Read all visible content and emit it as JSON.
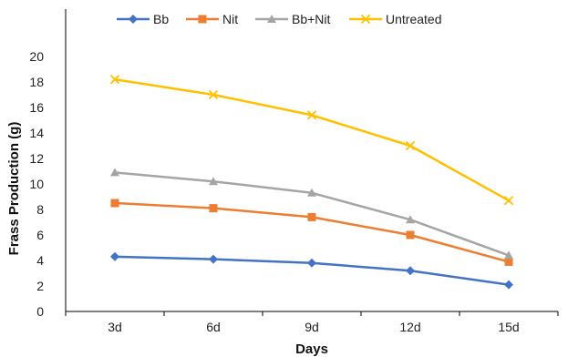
{
  "chart_data": {
    "type": "line",
    "title": "",
    "xlabel": "Days",
    "ylabel": "Frass Production (g)",
    "categories": [
      "3d",
      "6d",
      "9d",
      "12d",
      "15d"
    ],
    "ylim": [
      0,
      20
    ],
    "yticks": [
      0,
      2,
      4,
      6,
      8,
      10,
      12,
      14,
      16,
      18,
      20
    ],
    "grid": false,
    "legend_position": "top",
    "series": [
      {
        "name": "Bb",
        "color": "#4472C4",
        "marker": "diamond",
        "values": [
          4.3,
          4.1,
          3.8,
          3.2,
          2.1
        ]
      },
      {
        "name": "Nit",
        "color": "#ED7D31",
        "marker": "square",
        "values": [
          8.5,
          8.1,
          7.4,
          6.0,
          3.9
        ]
      },
      {
        "name": "Bb+Nit",
        "color": "#A5A5A5",
        "marker": "triangle",
        "values": [
          10.9,
          10.2,
          9.3,
          7.2,
          4.4
        ]
      },
      {
        "name": "Untreated",
        "color": "#FFC000",
        "marker": "x",
        "values": [
          18.2,
          17.0,
          15.4,
          13.0,
          8.7
        ]
      }
    ]
  }
}
